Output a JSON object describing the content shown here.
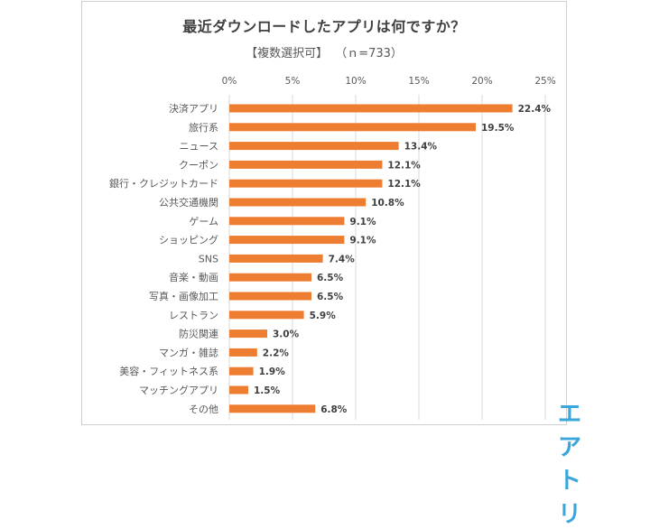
{
  "title": "最近ダウンロードしたアプリは何ですか？",
  "subtitle": {
    "note": "【複数選択可】",
    "sample": "（ｎ=733）"
  },
  "logo": "エアトリ",
  "colors": {
    "bar": "#ed7d31",
    "grid": "#d9d9d9",
    "text": "#595959"
  },
  "chart_data": {
    "type": "bar",
    "orientation": "horizontal",
    "categories": [
      "決済アプリ",
      "旅行系",
      "ニュース",
      "クーポン",
      "銀行・クレジットカード",
      "公共交通機関",
      "ゲーム",
      "ショッピング",
      "SNS",
      "音楽・動画",
      "写真・画像加工",
      "レストラン",
      "防災関連",
      "マンガ・雑誌",
      "美容・フィットネス系",
      "マッチングアプリ",
      "その他"
    ],
    "values": [
      22.4,
      19.5,
      13.4,
      12.1,
      12.1,
      10.8,
      9.1,
      9.1,
      7.4,
      6.5,
      6.5,
      5.9,
      3.0,
      2.2,
      1.9,
      1.5,
      6.8
    ],
    "value_labels": [
      "22.4%",
      "19.5%",
      "13.4%",
      "12.1%",
      "12.1%",
      "10.8%",
      "9.1%",
      "9.1%",
      "7.4%",
      "6.5%",
      "6.5%",
      "5.9%",
      "3.0%",
      "2.2%",
      "1.9%",
      "1.5%",
      "6.8%"
    ],
    "xlim": [
      0,
      25
    ],
    "xticks": [
      0,
      5,
      10,
      15,
      20,
      25
    ],
    "xtick_labels": [
      "0%",
      "5%",
      "10%",
      "15%",
      "20%",
      "25%"
    ],
    "axis_position": "top",
    "grid": true,
    "legend": false
  }
}
